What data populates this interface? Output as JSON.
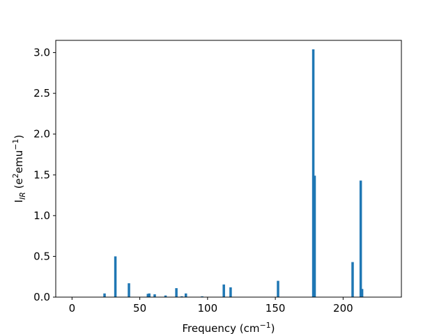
{
  "chart_data": {
    "type": "bar",
    "title": "",
    "xlabel": {
      "text": "Frequency (cm",
      "sup": "−1",
      "suffix": ")"
    },
    "ylabel": {
      "main": "I",
      "sub": "IR",
      "mid": " (e",
      "sup1": "2",
      "mid2": "emu",
      "sup2": "−1",
      "suffix": ")"
    },
    "xlim": [
      -12,
      243
    ],
    "ylim": [
      0,
      3.15
    ],
    "xticks": [
      0,
      50,
      100,
      150,
      200
    ],
    "yticks": [
      "0.0",
      "0.5",
      "1.0",
      "1.5",
      "2.0",
      "2.5",
      "3.0"
    ],
    "bar_width": 1.8,
    "color": "#1f77b4",
    "series": [
      {
        "x": [
          24,
          32,
          42,
          56,
          57,
          61,
          69,
          77,
          81,
          84,
          96,
          112,
          117,
          152,
          178,
          179,
          207,
          213,
          214
        ],
        "values": [
          0.045,
          0.5,
          0.17,
          0.04,
          0.045,
          0.035,
          0.02,
          0.11,
          0.01,
          0.045,
          0.01,
          0.155,
          0.12,
          0.2,
          3.04,
          1.49,
          0.43,
          1.43,
          0.1
        ]
      }
    ]
  }
}
